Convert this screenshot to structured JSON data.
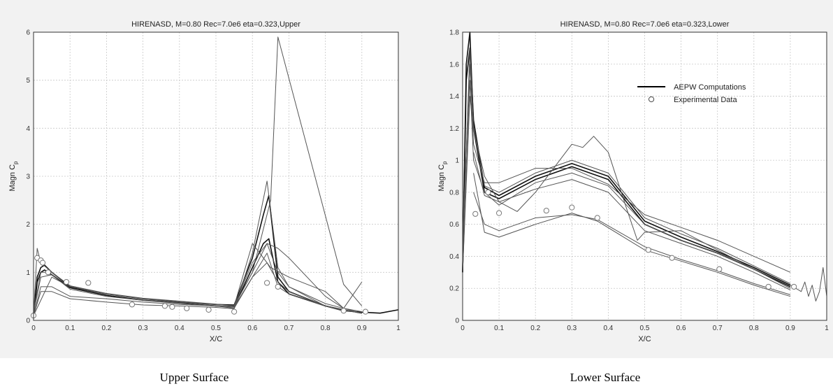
{
  "captions": {
    "left": "Upper Surface",
    "right": "Lower Surface"
  },
  "chart_data": [
    {
      "type": "line",
      "title": "HIRENASD, M=0.80 Rec=7.0e6 eta=0.323,Upper",
      "xlabel": "X/C",
      "ylabel": "Magn C",
      "ylabel_subscript": "p",
      "xlim": [
        0,
        1
      ],
      "ylim": [
        0,
        6
      ],
      "xticks": [
        "0",
        "0.1",
        "0.2",
        "0.3",
        "0.4",
        "0.5",
        "0.6",
        "0.7",
        "0.8",
        "0.9",
        "1"
      ],
      "yticks": [
        "0",
        "1",
        "2",
        "3",
        "4",
        "5",
        "6"
      ],
      "grid": true,
      "series": [
        {
          "style": "computation",
          "x": [
            0,
            0.01,
            0.02,
            0.03,
            0.05,
            0.1,
            0.2,
            0.3,
            0.4,
            0.5,
            0.55,
            0.6,
            0.63,
            0.645,
            0.67,
            0.7,
            0.8,
            0.85,
            0.9,
            0.95,
            1.0
          ],
          "y": [
            0.1,
            0.9,
            1.1,
            1.15,
            1.0,
            0.7,
            0.55,
            0.45,
            0.38,
            0.33,
            0.32,
            1.3,
            2.2,
            2.6,
            0.9,
            0.6,
            0.3,
            0.2,
            0.17,
            0.15,
            0.22
          ]
        },
        {
          "style": "computation",
          "x": [
            0,
            0.01,
            0.02,
            0.03,
            0.05,
            0.1,
            0.2,
            0.3,
            0.4,
            0.5,
            0.55,
            0.6,
            0.63,
            0.645,
            0.67,
            0.7,
            0.8,
            0.85,
            0.9
          ],
          "y": [
            0.1,
            0.8,
            1.0,
            1.05,
            0.95,
            0.68,
            0.52,
            0.42,
            0.36,
            0.3,
            0.28,
            1.1,
            1.6,
            1.7,
            0.8,
            0.55,
            0.3,
            0.22,
            0.15
          ]
        },
        {
          "style": "computation",
          "x": [
            0,
            0.02,
            0.05,
            0.1,
            0.2,
            0.3,
            0.4,
            0.5,
            0.55,
            0.6,
            0.64,
            0.67,
            0.7,
            0.8,
            0.85,
            0.9
          ],
          "y": [
            0.2,
            1.0,
            1.0,
            0.72,
            0.56,
            0.46,
            0.4,
            0.34,
            0.3,
            1.2,
            1.6,
            1.0,
            0.7,
            0.35,
            0.25,
            0.18
          ]
        },
        {
          "style": "computation",
          "x": [
            0,
            0.02,
            0.05,
            0.1,
            0.2,
            0.3,
            0.4,
            0.5,
            0.55,
            0.6,
            0.64,
            0.67,
            0.7,
            0.8,
            0.85,
            0.9
          ],
          "y": [
            0.15,
            0.9,
            0.95,
            0.65,
            0.5,
            0.42,
            0.36,
            0.3,
            0.28,
            0.9,
            1.4,
            0.7,
            0.55,
            0.3,
            0.2,
            0.16
          ]
        },
        {
          "style": "computation",
          "x": [
            0,
            0.02,
            0.05,
            0.1,
            0.2,
            0.3,
            0.4,
            0.5,
            0.55,
            0.6,
            0.64,
            0.67,
            0.7,
            0.8,
            0.85,
            0.9
          ],
          "y": [
            0.1,
            0.7,
            0.7,
            0.5,
            0.45,
            0.38,
            0.33,
            0.3,
            0.25,
            0.9,
            1.2,
            0.8,
            0.6,
            0.3,
            0.22,
            0.15
          ]
        },
        {
          "style": "computation",
          "x": [
            0,
            0.02,
            0.05,
            0.1,
            0.2,
            0.3,
            0.4,
            0.5,
            0.55,
            0.6,
            0.64,
            0.67,
            0.7,
            0.8,
            0.85,
            0.9
          ],
          "y": [
            0.1,
            0.6,
            0.6,
            0.45,
            0.38,
            0.32,
            0.3,
            0.27,
            0.24,
            1.4,
            2.9,
            1.1,
            0.7,
            0.3,
            0.22,
            0.15
          ]
        },
        {
          "style": "computation",
          "x": [
            0,
            0.01,
            0.02,
            0.05,
            0.1,
            0.2,
            0.3,
            0.4,
            0.5,
            0.55,
            0.6,
            0.64,
            0.67,
            0.7,
            0.8,
            0.85,
            0.9
          ],
          "y": [
            0.1,
            1.5,
            1.2,
            1.0,
            0.72,
            0.55,
            0.45,
            0.38,
            0.33,
            0.3,
            1.0,
            1.6,
            1.5,
            1.3,
            0.5,
            0.25,
            0.15
          ]
        },
        {
          "style": "computation",
          "x": [
            0,
            0.05,
            0.1,
            0.2,
            0.3,
            0.4,
            0.5,
            0.55,
            0.6,
            0.65,
            0.67,
            0.85,
            0.9
          ],
          "y": [
            0.1,
            0.9,
            0.7,
            0.55,
            0.45,
            0.38,
            0.33,
            0.3,
            1.0,
            2.5,
            5.9,
            0.75,
            0.3
          ]
        },
        {
          "style": "computation",
          "x": [
            0.55,
            0.6,
            0.65,
            0.7,
            0.8,
            0.85,
            0.9
          ],
          "y": [
            0.3,
            1.6,
            1.1,
            0.9,
            0.6,
            0.25,
            0.8
          ]
        }
      ],
      "experimental": {
        "label": "Experimental Data",
        "x": [
          0.0,
          0.01,
          0.02,
          0.025,
          0.04,
          0.09,
          0.15,
          0.27,
          0.36,
          0.38,
          0.42,
          0.48,
          0.55,
          0.64,
          0.67,
          0.85,
          0.91
        ],
        "y": [
          0.1,
          1.3,
          1.25,
          1.2,
          1.0,
          0.8,
          0.78,
          0.33,
          0.3,
          0.28,
          0.25,
          0.22,
          0.18,
          0.78,
          0.7,
          0.2,
          0.18
        ]
      }
    },
    {
      "type": "line",
      "title": "HIRENASD, M=0.80 Rec=7.0e6 eta=0.323,Lower",
      "xlabel": "X/C",
      "ylabel": "Magn C",
      "ylabel_subscript": "p",
      "xlim": [
        0,
        1
      ],
      "ylim": [
        0,
        1.8
      ],
      "xticks": [
        "0",
        "0.1",
        "0.2",
        "0.3",
        "0.4",
        "0.5",
        "0.6",
        "0.7",
        "0.8",
        "0.9",
        "1"
      ],
      "yticks": [
        "0",
        "0.2",
        "0.4",
        "0.6",
        "0.8",
        "1",
        "1.2",
        "1.4",
        "1.6",
        "1.8"
      ],
      "grid": true,
      "legend": {
        "position": "top-right",
        "entries": [
          {
            "label": "AEPW Computations",
            "marker": "line"
          },
          {
            "label": "Experimental Data",
            "marker": "circle"
          }
        ]
      },
      "series": [
        {
          "style": "computation",
          "x": [
            0,
            0.01,
            0.02,
            0.03,
            0.06,
            0.1,
            0.2,
            0.3,
            0.4,
            0.5,
            0.6,
            0.7,
            0.8,
            0.9
          ],
          "y": [
            0.3,
            1.5,
            1.7,
            1.25,
            0.83,
            0.78,
            0.9,
            0.98,
            0.9,
            0.62,
            0.52,
            0.43,
            0.33,
            0.22
          ]
        },
        {
          "style": "computation",
          "x": [
            0,
            0.01,
            0.02,
            0.03,
            0.06,
            0.1,
            0.2,
            0.3,
            0.4,
            0.5,
            0.6,
            0.7,
            0.8,
            0.9
          ],
          "y": [
            0.3,
            1.6,
            1.8,
            1.2,
            0.8,
            0.76,
            0.88,
            0.96,
            0.88,
            0.6,
            0.5,
            0.42,
            0.32,
            0.21
          ]
        },
        {
          "style": "computation",
          "x": [
            0,
            0.02,
            0.03,
            0.06,
            0.1,
            0.2,
            0.3,
            0.4,
            0.5,
            0.6,
            0.7,
            0.8,
            0.9
          ],
          "y": [
            0.4,
            1.7,
            1.2,
            0.84,
            0.8,
            0.92,
            1.0,
            0.92,
            0.64,
            0.54,
            0.45,
            0.34,
            0.23
          ]
        },
        {
          "style": "computation",
          "x": [
            0,
            0.02,
            0.03,
            0.06,
            0.1,
            0.2,
            0.3,
            0.4,
            0.5,
            0.6,
            0.7,
            0.8,
            0.9
          ],
          "y": [
            0.5,
            1.6,
            1.1,
            0.86,
            0.86,
            0.95,
            0.95,
            0.85,
            0.66,
            0.58,
            0.5,
            0.4,
            0.3
          ]
        },
        {
          "style": "computation",
          "x": [
            0,
            0.02,
            0.03,
            0.06,
            0.1,
            0.2,
            0.3,
            0.4,
            0.5,
            0.6,
            0.7,
            0.8,
            0.9
          ],
          "y": [
            0.3,
            1.5,
            1.0,
            0.8,
            0.72,
            0.86,
            0.92,
            0.84,
            0.6,
            0.5,
            0.42,
            0.32,
            0.2
          ]
        },
        {
          "style": "computation",
          "x": [
            0,
            0.02,
            0.03,
            0.06,
            0.1,
            0.2,
            0.3,
            0.4,
            0.5,
            0.6,
            0.7,
            0.8,
            0.9
          ],
          "y": [
            0.3,
            1.4,
            1.2,
            0.9,
            0.74,
            0.82,
            0.88,
            0.8,
            0.56,
            0.48,
            0.4,
            0.3,
            0.19
          ]
        },
        {
          "style": "computation",
          "x": [
            0.03,
            0.06,
            0.1,
            0.15,
            0.2,
            0.3,
            0.33,
            0.36,
            0.4,
            0.45,
            0.48,
            0.5,
            0.6,
            0.7,
            0.8,
            0.9
          ],
          "y": [
            1.05,
            0.78,
            0.74,
            0.68,
            0.8,
            1.1,
            1.08,
            1.15,
            1.05,
            0.7,
            0.5,
            0.55,
            0.56,
            0.44,
            0.32,
            0.2
          ]
        },
        {
          "style": "computation",
          "x": [
            0.03,
            0.06,
            0.1,
            0.2,
            0.3,
            0.37,
            0.5,
            0.6,
            0.7,
            0.8,
            0.9
          ],
          "y": [
            0.92,
            0.55,
            0.52,
            0.6,
            0.67,
            0.62,
            0.44,
            0.37,
            0.3,
            0.22,
            0.15
          ]
        },
        {
          "style": "computation",
          "x": [
            0.03,
            0.06,
            0.1,
            0.2,
            0.3,
            0.37,
            0.5,
            0.6,
            0.7,
            0.8,
            0.9
          ],
          "y": [
            0.8,
            0.6,
            0.56,
            0.64,
            0.66,
            0.63,
            0.46,
            0.38,
            0.31,
            0.23,
            0.16
          ]
        },
        {
          "style": "computation",
          "x": [
            0.9,
            0.93,
            0.94,
            0.95,
            0.96,
            0.97,
            0.98,
            0.99,
            1.0
          ],
          "y": [
            0.22,
            0.18,
            0.24,
            0.15,
            0.22,
            0.12,
            0.18,
            0.33,
            0.15
          ]
        }
      ],
      "experimental": {
        "label": "Experimental Data",
        "x": [
          0.035,
          0.07,
          0.1,
          0.23,
          0.3,
          0.37,
          0.51,
          0.575,
          0.705,
          0.84,
          0.91
        ],
        "y": [
          0.665,
          0.8,
          0.67,
          0.685,
          0.705,
          0.64,
          0.44,
          0.39,
          0.32,
          0.21,
          0.21
        ]
      }
    }
  ]
}
